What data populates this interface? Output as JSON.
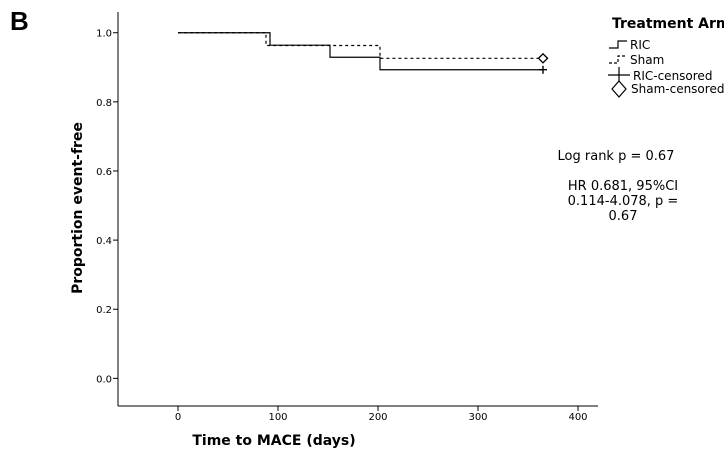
{
  "panel_label": "B",
  "chart_data": {
    "type": "line",
    "subtype": "kaplan-meier",
    "xlabel": "Time to MACE (days)",
    "ylabel": "Proportion event-free",
    "xlim": [
      -60,
      420
    ],
    "ylim": [
      -0.08,
      1.06
    ],
    "xticks": [
      0,
      100,
      200,
      300,
      400
    ],
    "yticks": [
      0.0,
      0.2,
      0.4,
      0.6,
      0.8,
      1.0
    ],
    "xtick_labels": [
      "0",
      "100",
      "200",
      "300",
      "400"
    ],
    "ytick_labels": [
      "0.0",
      "0.2",
      "0.4",
      "0.6",
      "0.8",
      "1.0"
    ],
    "grid": false,
    "legend": {
      "title": "Treatment Arm",
      "placement": "top-right",
      "entries": [
        "RIC",
        "Sham",
        "RIC-censored",
        "Sham-censored"
      ]
    },
    "series": [
      {
        "name": "RIC",
        "style": "solid",
        "color": "#000000",
        "steps": [
          [
            0,
            1.0
          ],
          [
            92,
            0.964
          ],
          [
            152,
            0.929
          ],
          [
            202,
            0.893
          ],
          [
            365,
            0.893
          ]
        ],
        "censored": [
          [
            365,
            0.893
          ]
        ],
        "censor_marker": "plus"
      },
      {
        "name": "Sham",
        "style": "dashed",
        "color": "#000000",
        "steps": [
          [
            0,
            1.0
          ],
          [
            88,
            0.963
          ],
          [
            202,
            0.926
          ],
          [
            365,
            0.926
          ]
        ],
        "censored": [
          [
            365,
            0.926
          ]
        ],
        "censor_marker": "diamond"
      }
    ],
    "annotations": [
      "Log rank p = 0.67",
      "HR 0.681, 95%CI",
      "0.114-4.078, p =",
      "0.67"
    ]
  }
}
